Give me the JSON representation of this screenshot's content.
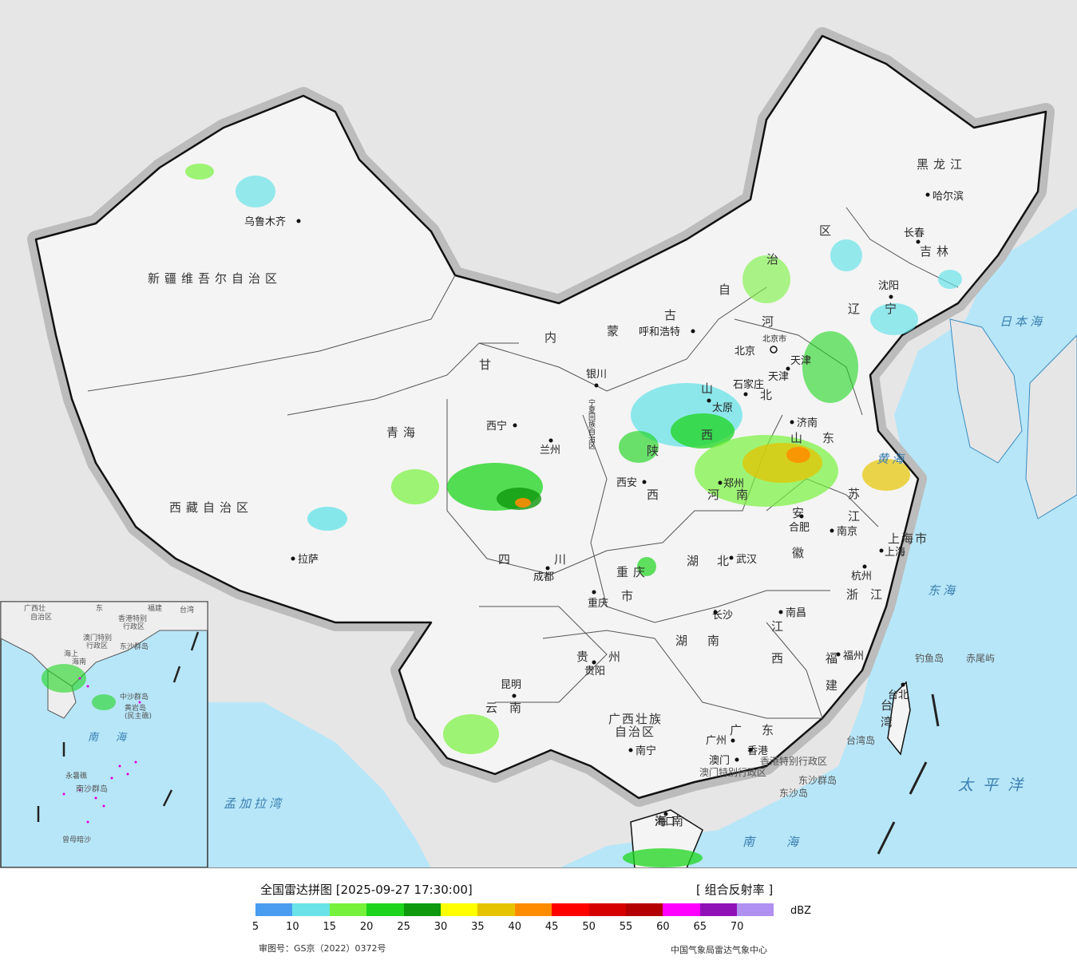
{
  "legend": {
    "title": "全国雷达拼图 [2025-09-27 17:30:00]",
    "product": "[ 组合反射率 ]",
    "unit": "dBZ",
    "colors": [
      "#4a9cf0",
      "#6ae3e8",
      "#77f23c",
      "#1ed51e",
      "#0e990e",
      "#ffff00",
      "#e6c400",
      "#ff8c00",
      "#ff0000",
      "#d60000",
      "#b40000",
      "#ff00ff",
      "#9010b8",
      "#b090f0"
    ],
    "ticks": [
      "5",
      "10",
      "15",
      "20",
      "25",
      "30",
      "35",
      "40",
      "45",
      "50",
      "55",
      "60",
      "65",
      "70"
    ],
    "approval": "审图号：GS京（2022）0372号",
    "credit": "中国气象局雷达气象中心"
  },
  "provinces": [
    "新疆维吾尔自治区",
    "西藏自治区",
    "青海",
    "甘",
    "内",
    "蒙",
    "古",
    "自",
    "治",
    "区",
    "黑龙江",
    "吉林",
    "辽",
    "宁",
    "河",
    "北",
    "山",
    "西",
    "陕",
    "西",
    "河",
    "南",
    "山",
    "东",
    "四",
    "川",
    "重庆",
    "市",
    "云",
    "南",
    "贵",
    "州",
    "湖",
    "北",
    "湖",
    "南",
    "江",
    "西",
    "安",
    "徽",
    "江",
    "苏",
    "浙",
    "江",
    "福",
    "建",
    "广",
    "东",
    "广西壮族",
    "自治区",
    "台湾",
    "上海市",
    "北京市",
    "天津",
    "宁夏回族自治区",
    "海南"
  ],
  "cities": [
    "乌鲁木齐",
    "拉萨",
    "西宁",
    "兰州",
    "银川",
    "呼和浩特",
    "北京",
    "天津",
    "石家庄",
    "太原",
    "济南",
    "郑州",
    "西安",
    "成都",
    "重庆",
    "贵阳",
    "昆明",
    "长沙",
    "武汉",
    "合肥",
    "南京",
    "上海",
    "杭州",
    "南昌",
    "福州",
    "台北",
    "广州",
    "香港",
    "澳门",
    "南宁",
    "海口",
    "沈阳",
    "长春",
    "哈尔滨"
  ],
  "seas": [
    "日本海",
    "黄海",
    "东海",
    "太平洋",
    "南海",
    "孟加拉湾"
  ],
  "islands": [
    "钓鱼岛",
    "赤尾屿",
    "台湾岛",
    "东沙群岛",
    "东沙岛",
    "香港特别行政区",
    "澳门特别行政区"
  ],
  "inset": {
    "labels": [
      "广西壮",
      "自治区",
      "东",
      "福建",
      "台湾",
      "香港特别",
      "行政区",
      "澳门特别",
      "行政区",
      "东沙群岛",
      "海上",
      "海南",
      "中沙群岛",
      "黄岩岛",
      "(民主礁)",
      "南",
      "海",
      "永暑礁",
      "南沙群岛",
      "曾母暗沙"
    ]
  }
}
